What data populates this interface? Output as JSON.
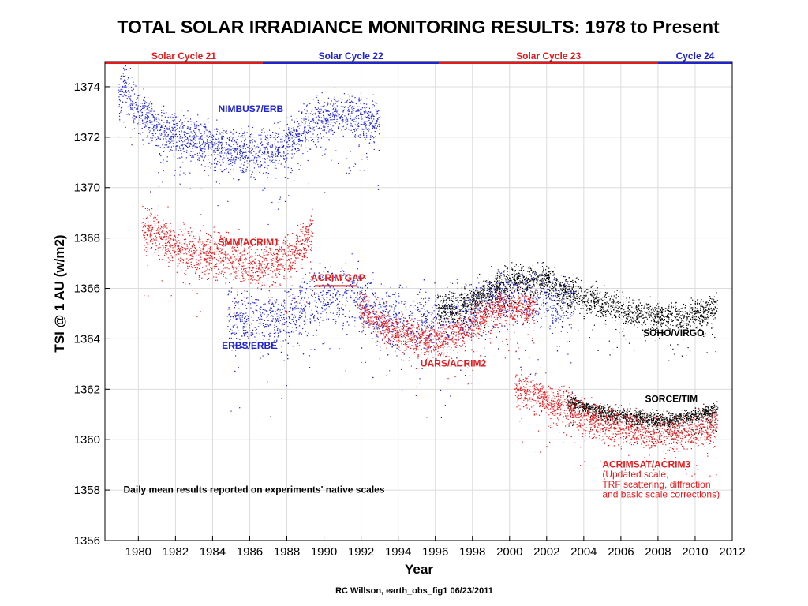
{
  "chart_data": {
    "type": "scatter",
    "title": "TOTAL SOLAR IRRADIANCE MONITORING RESULTS: 1978 to Present",
    "xlabel": "Year",
    "ylabel": "TSI @ 1 AU (w/m2)",
    "credit": "RC Willson, earth_obs_fig1 06/23/2011",
    "xlim": [
      1978.2,
      2012
    ],
    "ylim": [
      1356,
      1375
    ],
    "xticks": [
      1980,
      1982,
      1984,
      1986,
      1988,
      1990,
      1992,
      1994,
      1996,
      1998,
      2000,
      2002,
      2004,
      2006,
      2008,
      2010,
      2012
    ],
    "yticks": [
      1356,
      1358,
      1360,
      1362,
      1364,
      1366,
      1368,
      1370,
      1372,
      1374
    ],
    "grid": true,
    "colors": {
      "red": "#e41a1c",
      "blue": "#1f24cf",
      "black": "#000000"
    },
    "cycles": [
      {
        "name": "Solar Cycle 21",
        "start": 1978.2,
        "end": 1986.7,
        "color": "#e41a1c"
      },
      {
        "name": "Solar Cycle 22",
        "start": 1986.7,
        "end": 1996.2,
        "color": "#1f24cf"
      },
      {
        "name": "Solar Cycle 23",
        "start": 1996.2,
        "end": 2008.0,
        "color": "#e41a1c"
      },
      {
        "name": "Cycle 24",
        "start": 2008.0,
        "end": 2012,
        "color": "#1f24cf"
      }
    ],
    "series": [
      {
        "name": "NIMBUS7/ERB",
        "color": "#1f24cf",
        "x": [
          1978.9,
          1979.2,
          1979.5,
          1980,
          1980.5,
          1981,
          1981.5,
          1982,
          1982.5,
          1983,
          1983.5,
          1984,
          1984.5,
          1985,
          1985.5,
          1986,
          1986.5,
          1987,
          1987.5,
          1988,
          1988.5,
          1989,
          1989.5,
          1990,
          1990.5,
          1991,
          1991.5,
          1992,
          1992.5,
          1993
        ],
        "y": [
          1373.2,
          1374.2,
          1373.6,
          1373.0,
          1372.8,
          1372.4,
          1372.3,
          1372.1,
          1372.0,
          1371.9,
          1371.8,
          1371.7,
          1371.6,
          1371.5,
          1371.5,
          1371.4,
          1371.4,
          1371.4,
          1371.5,
          1371.8,
          1372.1,
          1372.4,
          1372.6,
          1372.8,
          1372.9,
          1372.9,
          1373.0,
          1372.8,
          1372.6,
          1372.6
        ],
        "spread": 0.45
      },
      {
        "name": "SMM/ACRIM1",
        "color": "#e41a1c",
        "x": [
          1980.2,
          1980.5,
          1981,
          1981.5,
          1982,
          1982.5,
          1983,
          1983.5,
          1984,
          1984.5,
          1985,
          1985.5,
          1986,
          1986.5,
          1987,
          1987.5,
          1988,
          1988.5,
          1989,
          1989.4
        ],
        "y": [
          1368.6,
          1368.3,
          1368.2,
          1368.0,
          1367.7,
          1367.6,
          1367.5,
          1367.4,
          1367.4,
          1367.4,
          1367.2,
          1367.1,
          1367.0,
          1367.0,
          1367.0,
          1367.1,
          1367.3,
          1367.6,
          1367.9,
          1368.2
        ],
        "spread": 0.45
      },
      {
        "name": "ERBS/ERBE",
        "color": "#1f24cf",
        "x": [
          1984.8,
          1985.5,
          1986.5,
          1987.5,
          1988.5,
          1989.5,
          1990.5,
          1991.5,
          1992.5,
          1993.5,
          1994.5,
          1995.5,
          1996.5,
          1997.5,
          1998.5,
          1999.5,
          2000.5,
          2001.5,
          2002.5,
          2003.5
        ],
        "y": [
          1364.9,
          1364.7,
          1364.6,
          1364.8,
          1365.2,
          1365.5,
          1365.8,
          1365.9,
          1365.3,
          1364.9,
          1364.7,
          1364.7,
          1364.8,
          1365.1,
          1365.4,
          1365.6,
          1365.8,
          1365.7,
          1365.5,
          1365.2
        ],
        "spread": 0.6
      },
      {
        "name": "UARS/ACRIM2",
        "color": "#e41a1c",
        "x": [
          1991.9,
          1992.5,
          1993,
          1993.5,
          1994,
          1994.5,
          1995,
          1995.5,
          1996,
          1996.5,
          1997,
          1997.5,
          1998,
          1998.5,
          1999,
          1999.5,
          2000,
          2000.5,
          2001,
          2001.4
        ],
        "y": [
          1365.3,
          1364.9,
          1364.6,
          1364.4,
          1364.3,
          1364.2,
          1364.1,
          1364.0,
          1364.0,
          1364.0,
          1364.2,
          1364.4,
          1364.6,
          1364.9,
          1365.1,
          1365.3,
          1365.3,
          1365.3,
          1365.2,
          1365.1
        ],
        "spread": 0.35
      },
      {
        "name": "SOHO/VIRGO",
        "color": "#000000",
        "x": [
          1996.1,
          1996.8,
          1997.5,
          1998,
          1998.5,
          1999,
          1999.5,
          2000,
          2000.5,
          2001,
          2001.5,
          2002,
          2002.5,
          2003,
          2003.5,
          2004,
          2004.5,
          2005,
          2005.5,
          2006,
          2006.5,
          2007,
          2007.5,
          2008,
          2008.5,
          2009,
          2009.5,
          2010,
          2010.5,
          2011.2
        ],
        "y": [
          1365.2,
          1365.2,
          1365.3,
          1365.5,
          1365.8,
          1366.0,
          1366.2,
          1366.3,
          1366.4,
          1366.4,
          1366.3,
          1366.4,
          1366.1,
          1365.9,
          1365.8,
          1365.6,
          1365.5,
          1365.4,
          1365.3,
          1365.2,
          1365.1,
          1365.0,
          1365.0,
          1364.9,
          1364.9,
          1364.9,
          1364.9,
          1365.0,
          1365.1,
          1365.2
        ],
        "spread": 0.3
      },
      {
        "name": "SORCE/TIM",
        "color": "#000000",
        "x": [
          2003.1,
          2003.5,
          2004,
          2004.5,
          2005,
          2005.5,
          2006,
          2006.5,
          2007,
          2007.5,
          2008,
          2008.5,
          2009,
          2009.5,
          2010,
          2010.5,
          2011.2
        ],
        "y": [
          1361.5,
          1361.4,
          1361.3,
          1361.2,
          1361.1,
          1361.0,
          1361.0,
          1360.9,
          1360.9,
          1360.8,
          1360.8,
          1360.8,
          1360.8,
          1360.9,
          1361.0,
          1361.1,
          1361.2
        ],
        "spread": 0.15
      },
      {
        "name": "ACRIMSAT/ACRIM3",
        "color": "#e41a1c",
        "x": [
          2000.3,
          2000.8,
          2001.3,
          2001.8,
          2002.3,
          2002.8,
          2003.3,
          2003.8,
          2004.3,
          2004.8,
          2005.3,
          2005.8,
          2006.3,
          2006.8,
          2007.3,
          2007.8,
          2008.3,
          2008.8,
          2009.3,
          2009.8,
          2010.3,
          2010.8,
          2011.2
        ],
        "y": [
          1362.0,
          1361.9,
          1361.8,
          1361.7,
          1361.5,
          1361.4,
          1361.2,
          1361.0,
          1360.9,
          1360.8,
          1360.7,
          1360.6,
          1360.5,
          1360.4,
          1360.3,
          1360.3,
          1360.3,
          1360.3,
          1360.3,
          1360.4,
          1360.5,
          1360.5,
          1360.6
        ],
        "spread": 0.35
      }
    ],
    "acrim_gap": {
      "start": 1989.5,
      "end": 1991.8,
      "y": 1366.1
    },
    "annotations": {
      "nimbus": {
        "text": "NIMBUS7/ERB",
        "x": 1984.3,
        "y": 1373.0,
        "color": "#1f24cf"
      },
      "smm": {
        "text": "SMM/ACRIM1",
        "x": 1984.3,
        "y": 1367.7,
        "color": "#e41a1c"
      },
      "gap": {
        "text": "ACRIM GAP",
        "x": 1989.3,
        "y": 1366.3,
        "color": "#e41a1c"
      },
      "erbs": {
        "text": "ERBS/ERBE",
        "x": 1984.5,
        "y": 1363.6,
        "color": "#1f24cf"
      },
      "uars": {
        "text": "UARS/ACRIM2",
        "x": 1995.2,
        "y": 1362.9,
        "color": "#e41a1c"
      },
      "virgo": {
        "text": "SOHO/VIRGO",
        "x": 2007.2,
        "y": 1364.1,
        "color": "#000000"
      },
      "tim": {
        "text": "SORCE/TIM",
        "x": 2007.3,
        "y": 1361.5,
        "color": "#000000"
      },
      "acrim3": {
        "text": "ACRIMSAT/ACRIM3",
        "x": 2005.0,
        "y": 1358.9,
        "color": "#e41a1c"
      },
      "acrim3_l1": {
        "text": "(Updated scale,",
        "x": 2005.0,
        "y": 1358.5,
        "color": "#e41a1c"
      },
      "acrim3_l2": {
        "text": "TRF scattering, diffraction",
        "x": 2005.0,
        "y": 1358.1,
        "color": "#e41a1c"
      },
      "acrim3_l3": {
        "text": "and basic scale corrections)",
        "x": 2005.0,
        "y": 1357.7,
        "color": "#e41a1c"
      },
      "daily": {
        "text": "Daily mean results reported on experiments' native scales",
        "x": 1979.2,
        "y": 1357.9,
        "color": "#000000"
      }
    }
  }
}
